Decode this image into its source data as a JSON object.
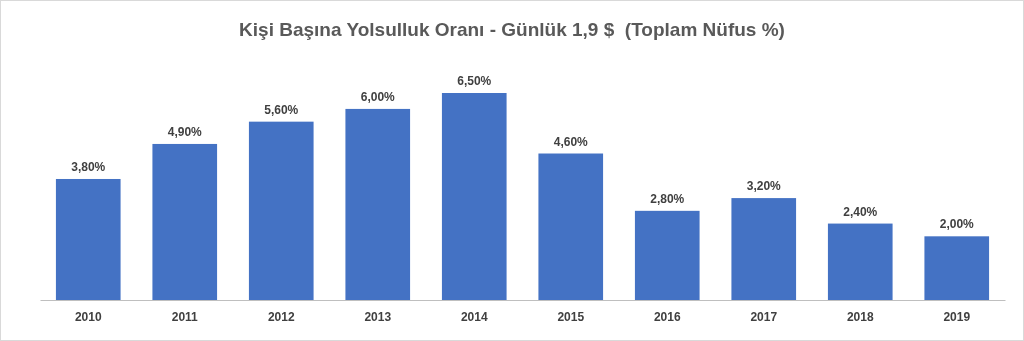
{
  "chart_data": {
    "type": "bar",
    "title": "Kişi Başına Yolsulluk Oranı - Günlük 1,9 $  (Toplam Nüfus %)",
    "categories": [
      "2010",
      "2011",
      "2012",
      "2013",
      "2014",
      "2015",
      "2016",
      "2017",
      "2018",
      "2019"
    ],
    "values": [
      3.8,
      4.9,
      5.6,
      6.0,
      6.5,
      4.6,
      2.8,
      3.2,
      2.4,
      2.0
    ],
    "value_labels": [
      "3,80%",
      "4,90%",
      "5,60%",
      "6,00%",
      "6,50%",
      "4,60%",
      "2,80%",
      "3,20%",
      "2,40%",
      "2,00%"
    ],
    "color": "#4472c4"
  }
}
